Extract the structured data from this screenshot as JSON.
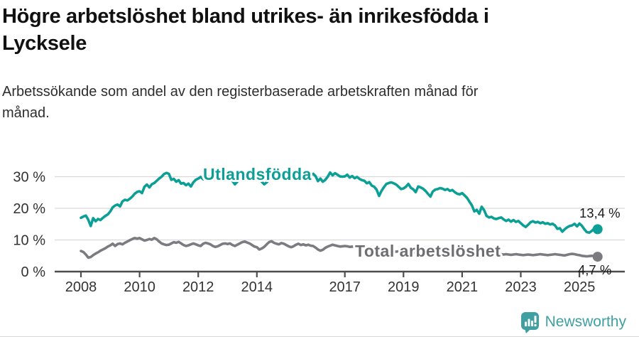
{
  "header": {
    "title": "Högre arbetslöshet bland utrikes- än inrikesfödda i Lycksele",
    "title_lines": [
      "Högre arbetslöshet bland utrikes- än inrikesfödda i",
      "Lycksele"
    ],
    "subtitle": "Arbetssökande som andel av den registerbaserade arbetskraften månad för månad.",
    "subtitle_lines": [
      "Arbetssökande som andel av den registerbaserade arbetskraften månad för",
      "månad."
    ]
  },
  "chart_data": {
    "type": "line",
    "title": "Högre arbetslöshet bland utrikes- än inrikesfödda i Lycksele",
    "subtitle": "Arbetssökande som andel av den registerbaserade arbetskraften månad för månad.",
    "unit": "%",
    "x_start": "2008-01",
    "x_end": "2025-08",
    "x_interval": "monthly",
    "x_ticks": [
      2008,
      2010,
      2012,
      2014,
      2017,
      2019,
      2021,
      2023,
      2025
    ],
    "y_ticks": [
      0,
      10,
      20,
      30
    ],
    "y_tick_labels": [
      "0 %",
      "10 %",
      "20 %",
      "30 %"
    ],
    "ylim": [
      0,
      33
    ],
    "grid": "horizontal",
    "legend_position": "inline-labels",
    "colors": {
      "utlandsfodda": "#0b9f96",
      "total": "#7b7b80",
      "total_label": "#6d6d72",
      "axis": "#4d4d4d",
      "gridline": "#d9d9d9",
      "end_label_text": "#1a1a1a"
    },
    "series": [
      {
        "name": "Utlandsfödda",
        "color": "#0b9f96",
        "end_label": "13,4 %",
        "end_value": 13.4,
        "values": [
          17.0,
          17.4,
          17.7,
          16.4,
          14.4,
          16.9,
          15.9,
          16.6,
          16.3,
          17.0,
          17.6,
          18.1,
          19.0,
          20.3,
          20.9,
          21.2,
          20.6,
          22.2,
          22.7,
          22.5,
          23.0,
          23.7,
          24.6,
          25.2,
          25.4,
          24.8,
          26.8,
          27.5,
          26.6,
          27.6,
          28.0,
          28.7,
          29.4,
          30.0,
          30.8,
          31.2,
          30.9,
          29.0,
          29.3,
          28.4,
          28.9,
          27.8,
          28.0,
          27.3,
          27.8,
          26.9,
          28.2,
          29.0,
          29.4,
          29.9,
          29.2,
          29.8,
          30.1,
          29.5,
          29.1,
          29.6,
          30.0,
          29.4,
          29.8,
          30.2,
          30.6,
          29.8,
          28.6,
          27.6,
          28.4,
          29.2,
          29.8,
          30.3,
          29.7,
          30.2,
          30.8,
          30.4,
          29.8,
          29.2,
          28.4,
          27.6,
          28.2,
          29.0,
          29.6,
          30.1,
          29.5,
          29.9,
          30.4,
          30.0,
          30.3,
          30.7,
          31.1,
          30.4,
          29.8,
          30.2,
          30.6,
          30.0,
          29.6,
          30.1,
          30.5,
          30.9,
          30.2,
          28.6,
          29.4,
          28.4,
          29.0,
          30.0,
          31.3,
          30.4,
          31.1,
          30.6,
          30.1,
          30.0,
          30.1,
          30.6,
          29.7,
          30.2,
          29.5,
          29.9,
          29.3,
          28.9,
          28.7,
          27.9,
          28.3,
          27.2,
          26.8,
          25.9,
          23.9,
          25.5,
          26.7,
          27.7,
          28.0,
          28.2,
          27.9,
          27.5,
          26.8,
          26.1,
          26.3,
          26.8,
          27.7,
          26.5,
          26.0,
          25.1,
          26.9,
          26.6,
          26.2,
          25.5,
          24.6,
          23.7,
          25.3,
          25.9,
          26.1,
          26.4,
          26.2,
          25.8,
          26.1,
          25.5,
          25.8,
          25.1,
          24.6,
          24.4,
          24.8,
          24.1,
          23.3,
          22.1,
          20.9,
          19.0,
          19.5,
          18.3,
          20.5,
          19.4,
          17.6,
          17.1,
          17.3,
          16.8,
          16.6,
          16.9,
          17.1,
          16.5,
          16.0,
          16.4,
          15.8,
          16.3,
          15.7,
          16.0,
          15.3,
          14.6,
          14.1,
          14.8,
          15.6,
          15.9,
          15.5,
          15.7,
          15.3,
          15.6,
          15.1,
          15.3,
          14.9,
          15.1,
          14.6,
          13.5,
          13.7,
          12.6,
          13.4,
          14.0,
          14.4,
          14.6,
          15.1,
          14.3,
          15.2,
          14.5,
          13.4,
          12.5,
          12.3,
          12.8,
          13.6,
          13.4
        ]
      },
      {
        "name": "Total arbetslöshet",
        "color": "#7b7b80",
        "end_label": "4,7 %",
        "end_value": 4.7,
        "values": [
          6.5,
          6.2,
          5.4,
          4.4,
          4.6,
          5.2,
          5.7,
          6.1,
          6.6,
          7.0,
          7.4,
          7.9,
          8.3,
          8.8,
          8.1,
          8.7,
          8.9,
          8.6,
          9.1,
          9.5,
          9.9,
          10.3,
          10.6,
          10.4,
          10.6,
          10.2,
          9.8,
          10.0,
          10.3,
          10.1,
          10.6,
          10.2,
          9.5,
          8.9,
          8.6,
          8.4,
          8.5,
          8.9,
          9.3,
          9.1,
          9.4,
          8.9,
          8.4,
          8.1,
          8.3,
          8.6,
          8.9,
          8.6,
          8.3,
          8.1,
          8.8,
          9.1,
          8.9,
          8.6,
          8.1,
          7.8,
          8.0,
          8.4,
          8.8,
          8.9,
          8.7,
          8.9,
          8.4,
          8.1,
          8.5,
          8.9,
          9.3,
          9.5,
          9.2,
          8.9,
          8.4,
          7.9,
          7.7,
          7.0,
          7.3,
          7.8,
          8.6,
          9.3,
          9.6,
          9.1,
          8.8,
          8.6,
          9.0,
          8.8,
          8.4,
          8.0,
          7.7,
          8.0,
          8.5,
          8.8,
          8.4,
          8.6,
          8.3,
          8.5,
          8.2,
          8.1,
          7.6,
          7.0,
          6.6,
          6.9,
          7.5,
          7.9,
          8.2,
          8.5,
          8.3,
          8.1,
          7.9,
          8.0,
          8.1,
          8.0,
          7.8,
          7.9,
          7.7,
          7.6,
          7.7,
          7.5,
          7.4,
          7.3,
          7.4,
          7.2,
          7.1,
          7.0,
          6.9,
          6.8,
          6.7,
          6.6,
          6.7,
          6.5,
          6.4,
          6.3,
          6.4,
          6.2,
          6.1,
          6.2,
          6.0,
          5.9,
          6.0,
          6.1,
          6.2,
          6.1,
          6.0,
          6.1,
          6.2,
          6.3,
          6.5,
          6.6,
          6.9,
          7.2,
          7.3,
          7.2,
          7.1,
          7.0,
          6.9,
          6.8,
          6.7,
          6.6,
          6.5,
          6.4,
          6.3,
          6.2,
          6.1,
          6.0,
          5.9,
          5.9,
          5.8,
          5.8,
          5.7,
          5.7,
          5.7,
          5.6,
          5.7,
          5.6,
          5.5,
          5.4,
          5.5,
          5.4,
          5.3,
          5.4,
          5.5,
          5.4,
          5.3,
          5.2,
          5.3,
          5.4,
          5.3,
          5.2,
          5.3,
          5.4,
          5.5,
          5.4,
          5.3,
          5.2,
          5.3,
          5.4,
          5.5,
          5.4,
          5.3,
          5.2,
          5.1,
          5.3,
          5.5,
          5.6,
          5.5,
          5.3,
          5.2,
          5.0,
          4.9,
          4.8,
          4.9,
          5.0,
          4.9,
          4.7
        ]
      }
    ]
  },
  "footer": {
    "brand": "Newsworthy",
    "brand_color": "#3f9fa1",
    "logo_icon": "bar-chart-speech-bubble-icon"
  }
}
